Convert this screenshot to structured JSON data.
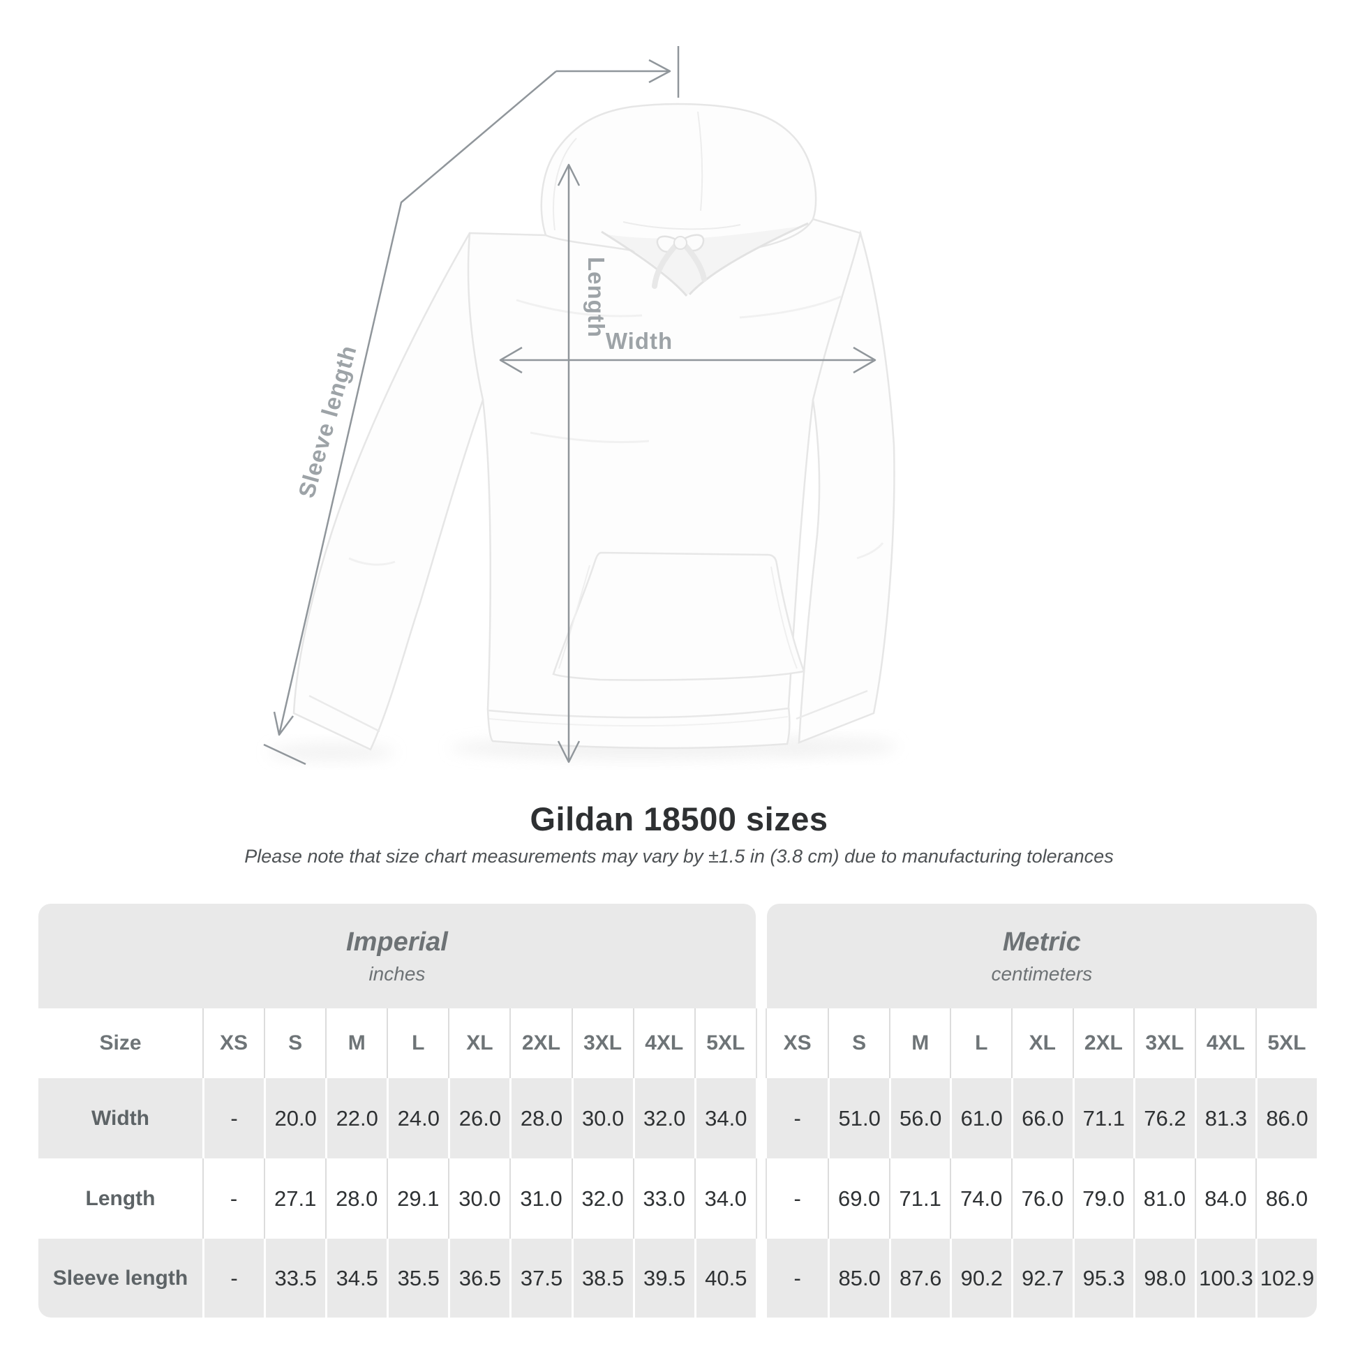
{
  "title": "Gildan 18500 sizes",
  "subtitle": "Please note that size chart measurements may vary by ±1.5 in (3.8 cm) due to manufacturing tolerances",
  "diagram": {
    "labels": {
      "sleeve_length": "Sleeve length",
      "length": "Length",
      "width": "Width"
    },
    "line_color": "#90969b",
    "label_color": "#9da3a7",
    "garment": "white pullover hoodie, front view, drawstring bow, kangaroo pocket"
  },
  "table": {
    "groups": [
      {
        "label": "Imperial",
        "sublabel": "inches"
      },
      {
        "label": "Metric",
        "sublabel": "centimeters"
      }
    ],
    "size_header": "Size",
    "sizes": [
      "XS",
      "S",
      "M",
      "L",
      "XL",
      "2XL",
      "3XL",
      "4XL",
      "5XL"
    ],
    "rows": [
      {
        "label": "Width",
        "imperial": [
          "-",
          "20.0",
          "22.0",
          "24.0",
          "26.0",
          "28.0",
          "30.0",
          "32.0",
          "34.0"
        ],
        "metric": [
          "-",
          "51.0",
          "56.0",
          "61.0",
          "66.0",
          "71.1",
          "76.2",
          "81.3",
          "86.0"
        ]
      },
      {
        "label": "Length",
        "imperial": [
          "-",
          "27.1",
          "28.0",
          "29.1",
          "30.0",
          "31.0",
          "32.0",
          "33.0",
          "34.0"
        ],
        "metric": [
          "-",
          "69.0",
          "71.1",
          "74.0",
          "76.0",
          "79.0",
          "81.0",
          "84.0",
          "86.0"
        ]
      },
      {
        "label": "Sleeve length",
        "imperial": [
          "-",
          "33.5",
          "34.5",
          "35.5",
          "36.5",
          "37.5",
          "38.5",
          "39.5",
          "40.5"
        ],
        "metric": [
          "-",
          "85.0",
          "87.6",
          "90.2",
          "92.7",
          "95.3",
          "98.0",
          "100.3",
          "102.9"
        ]
      }
    ],
    "colors": {
      "band": "#e9e9e9",
      "header_text": "#6e7477",
      "data_text": "#2e3133"
    }
  }
}
